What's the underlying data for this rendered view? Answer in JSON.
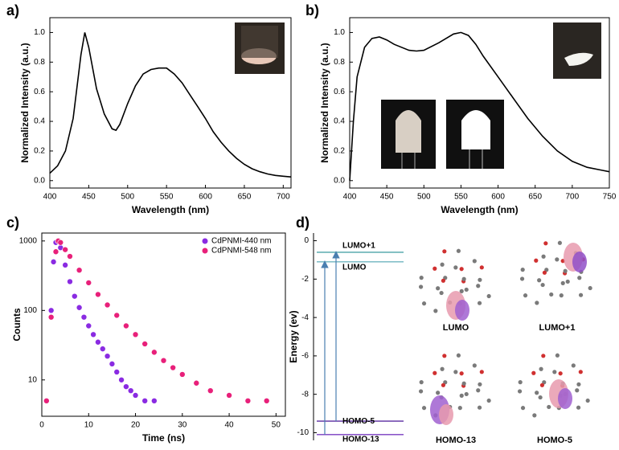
{
  "chart_data": [
    {
      "type": "line",
      "panel_label": "a)",
      "x_label": "Wavelength (nm)",
      "y_label": "Normalized Intensity (a.u.)",
      "color": "#000000",
      "x": [
        400,
        410,
        420,
        430,
        440,
        445,
        450,
        460,
        470,
        480,
        485,
        490,
        500,
        510,
        520,
        530,
        540,
        550,
        560,
        570,
        580,
        590,
        600,
        610,
        620,
        630,
        640,
        650,
        660,
        670,
        680,
        690,
        700,
        710
      ],
      "values": [
        0.05,
        0.1,
        0.2,
        0.42,
        0.85,
        1.0,
        0.9,
        0.62,
        0.45,
        0.35,
        0.34,
        0.38,
        0.52,
        0.64,
        0.72,
        0.75,
        0.76,
        0.76,
        0.72,
        0.66,
        0.58,
        0.5,
        0.42,
        0.33,
        0.26,
        0.2,
        0.15,
        0.11,
        0.08,
        0.06,
        0.045,
        0.035,
        0.03,
        0.025
      ],
      "xlim": [
        400,
        710
      ],
      "xticks": [
        400,
        450,
        500,
        550,
        600,
        650,
        700
      ],
      "ylim": [
        -0.05,
        1.1
      ],
      "yticks": [
        {
          "value": 0,
          "label": "0.0"
        },
        {
          "value": 0.2,
          "label": "0.2"
        },
        {
          "value": 0.4,
          "label": "0.4"
        },
        {
          "value": 0.6,
          "label": "0.6"
        },
        {
          "value": 0.8,
          "label": "0.8"
        },
        {
          "value": 1,
          "label": "1.0"
        }
      ]
    },
    {
      "type": "line",
      "panel_label": "b)",
      "x_label": "Wavelength (nm)",
      "y_label": "Normalized Intensity (a.u.)",
      "color": "#000000",
      "x": [
        400,
        405,
        410,
        420,
        430,
        440,
        450,
        460,
        480,
        490,
        500,
        520,
        540,
        550,
        560,
        570,
        580,
        600,
        620,
        640,
        660,
        680,
        700,
        720,
        740,
        750
      ],
      "values": [
        0.0,
        0.4,
        0.7,
        0.9,
        0.96,
        0.97,
        0.95,
        0.92,
        0.88,
        0.875,
        0.88,
        0.93,
        0.99,
        1.0,
        0.98,
        0.92,
        0.84,
        0.7,
        0.56,
        0.42,
        0.3,
        0.2,
        0.13,
        0.09,
        0.07,
        0.06
      ],
      "xlim": [
        400,
        750
      ],
      "xticks": [
        400,
        450,
        500,
        550,
        600,
        650,
        700,
        750
      ],
      "ylim": [
        -0.05,
        1.1
      ],
      "yticks": [
        {
          "value": 0,
          "label": "0.0"
        },
        {
          "value": 0.2,
          "label": "0.2"
        },
        {
          "value": 0.4,
          "label": "0.4"
        },
        {
          "value": 0.6,
          "label": "0.6"
        },
        {
          "value": 0.8,
          "label": "0.8"
        },
        {
          "value": 1,
          "label": "1.0"
        }
      ]
    },
    {
      "type": "scatter",
      "panel_label": "c)",
      "x_label": "Time (ns)",
      "y_label": "Counts",
      "log_y": true,
      "legend": "top-right",
      "xlim": [
        0,
        52
      ],
      "xticks": [
        0,
        10,
        20,
        30,
        40,
        50
      ],
      "ylim": [
        3,
        1300
      ],
      "yticks": [
        10,
        100,
        1000
      ],
      "series": [
        {
          "name": "CdPNMI-440 nm",
          "color": "#8a2be2",
          "x": [
            1,
            2,
            2.5,
            3,
            3.5,
            4,
            5,
            6,
            7,
            8,
            9,
            10,
            11,
            12,
            13,
            14,
            15,
            16,
            17,
            18,
            19,
            20,
            22,
            24
          ],
          "values": [
            5,
            100,
            500,
            950,
            1000,
            800,
            450,
            260,
            160,
            110,
            80,
            60,
            45,
            35,
            28,
            22,
            17,
            13,
            10,
            8,
            7,
            6,
            5,
            5
          ]
        },
        {
          "name": "CdPNMI-548 nm",
          "color": "#e8207a",
          "x": [
            1,
            2,
            3,
            3.5,
            4,
            5,
            6,
            8,
            10,
            12,
            14,
            16,
            18,
            20,
            22,
            24,
            26,
            28,
            30,
            33,
            36,
            40,
            44,
            48
          ],
          "values": [
            5,
            80,
            700,
            1000,
            950,
            750,
            600,
            380,
            250,
            170,
            120,
            85,
            60,
            45,
            33,
            25,
            19,
            15,
            12,
            9,
            7,
            6,
            5,
            5
          ]
        }
      ]
    },
    {
      "type": "energy-levels",
      "panel_label": "d)",
      "y_label": "Energy (ev)",
      "ylim": [
        -10.4,
        0.4
      ],
      "yticks": [
        0,
        -2,
        -4,
        -6,
        -8,
        -10
      ],
      "levels": [
        {
          "name": "LUMO+1",
          "value": -0.6,
          "color": "#4aa3a8"
        },
        {
          "name": "LUMO",
          "value": -1.1,
          "color": "#6fb5c0"
        },
        {
          "name": "HOMO-5",
          "value": -9.4,
          "color": "#5a2ca0"
        },
        {
          "name": "HOMO-13",
          "value": -10.1,
          "color": "#7a3cc0"
        }
      ],
      "orbitals": [
        "LUMO",
        "LUMO+1",
        "HOMO-13",
        "HOMO-5"
      ]
    }
  ]
}
